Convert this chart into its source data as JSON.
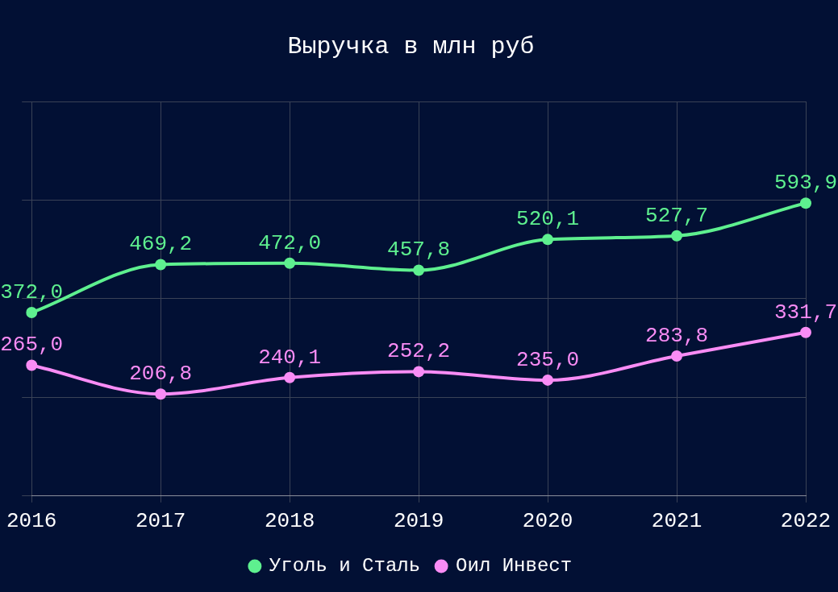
{
  "chart_data": {
    "type": "line",
    "title": "Выручка в млн руб",
    "categories": [
      "2016",
      "2017",
      "2018",
      "2019",
      "2020",
      "2021",
      "2022"
    ],
    "series": [
      {
        "name": "Уголь и Сталь",
        "color": "#5ef08f",
        "values": [
          372.0,
          469.2,
          472.0,
          457.8,
          520.1,
          527.7,
          593.9
        ],
        "value_labels": [
          "372,0",
          "469,2",
          "472,0",
          "457,8",
          "520,1",
          "527,7",
          "593,9"
        ]
      },
      {
        "name": "Оил Инвест",
        "color": "#f98cf5",
        "values": [
          265.0,
          206.8,
          240.1,
          252.2,
          235.0,
          283.8,
          331.7
        ],
        "value_labels": [
          "265,0",
          "206,8",
          "240,1",
          "252,2",
          "235,0",
          "283,8",
          "331,7"
        ]
      }
    ],
    "ylim": [
      0,
      800
    ],
    "yticks": [
      {
        "value": 0,
        "label": null
      },
      {
        "value": 200,
        "label": null
      },
      {
        "value": 400,
        "label": null
      },
      {
        "value": 600,
        "label": null
      },
      {
        "value": 800,
        "label": null
      }
    ],
    "tick_labels": "x",
    "grid": true,
    "legend": "bottom",
    "marker": "circle",
    "line_style": "solid"
  }
}
